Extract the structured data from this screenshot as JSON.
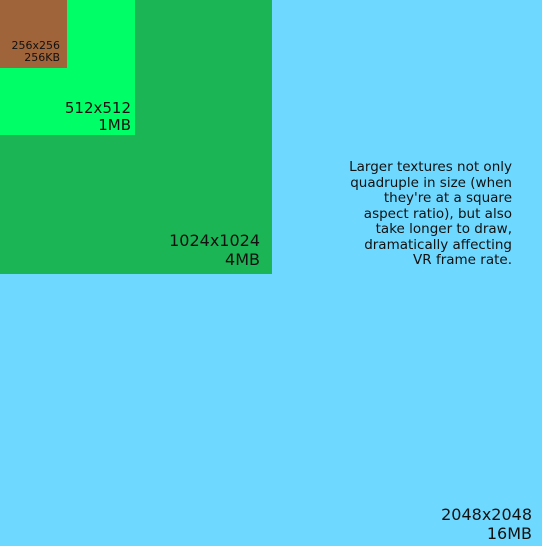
{
  "colors": {
    "tex_2048": "#6fd8ff",
    "tex_1024": "#1cb555",
    "tex_512": "#00ff66",
    "tex_256": "#a0643a"
  },
  "textures": [
    {
      "dimensions": "2048x2048",
      "size": "16MB"
    },
    {
      "dimensions": "1024x1024",
      "size": "4MB"
    },
    {
      "dimensions": "512x512",
      "size": "1MB"
    },
    {
      "dimensions": "256x256",
      "size": "256KB"
    }
  ],
  "note": "Larger textures not only quadruple in size (when they're at a square aspect ratio), but also take longer to draw, dramatically affecting VR frame rate."
}
